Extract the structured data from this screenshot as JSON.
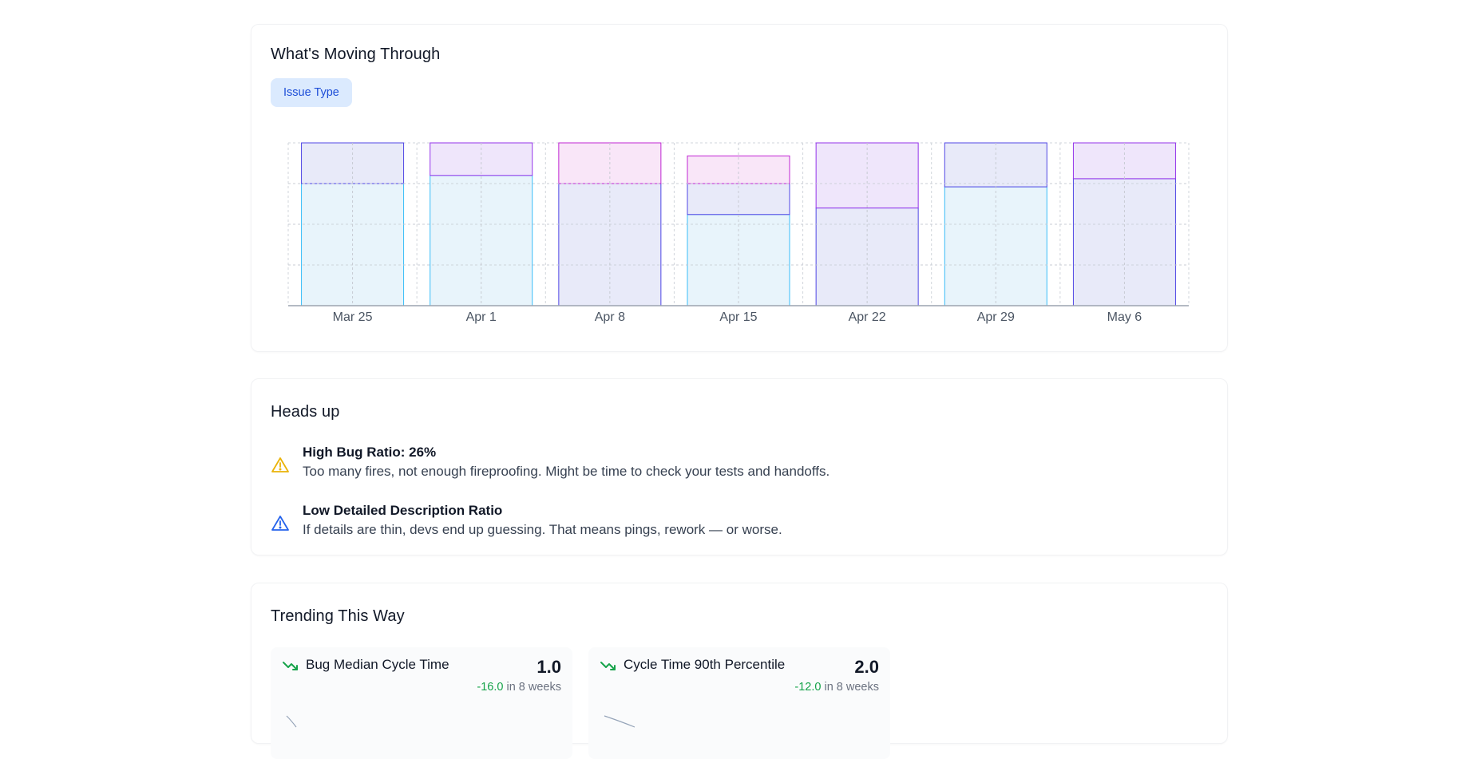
{
  "moving": {
    "title": "What's Moving Through",
    "filter_chip": "Issue Type"
  },
  "chart_data": {
    "type": "bar",
    "stacked": true,
    "normalized": true,
    "categories": [
      "Mar 25",
      "Apr 1",
      "Apr 8",
      "Apr 15",
      "Apr 22",
      "Apr 29",
      "May 6"
    ],
    "series": [
      {
        "key": "cyan",
        "color": "#38bdf8",
        "fill": "#e8f4fb",
        "values": [
          75,
          80,
          0,
          56,
          0,
          73,
          0
        ]
      },
      {
        "key": "blue",
        "color": "#4f46e5",
        "fill": "#e8eaf9",
        "values": [
          25,
          0,
          75,
          19,
          60,
          27,
          78
        ]
      },
      {
        "key": "violet",
        "color": "#9333ea",
        "fill": "#efe6fb",
        "values": [
          0,
          20,
          0,
          0,
          40,
          0,
          22
        ]
      },
      {
        "key": "magenta",
        "color": "#c026d3",
        "fill": "#f9e6f8",
        "values": [
          0,
          0,
          25,
          17,
          0,
          0,
          0
        ]
      }
    ],
    "ylim": [
      0,
      100
    ],
    "grid": true,
    "xlabel": "",
    "ylabel": ""
  },
  "heads_up": {
    "title": "Heads up",
    "alerts": [
      {
        "icon": "warning-triangle-icon",
        "color": "#eab308",
        "title": "High Bug Ratio: 26%",
        "description": "Too many fires, not enough fireproofing. Might be time to check your tests and handoffs."
      },
      {
        "icon": "warning-triangle-icon",
        "color": "#2563eb",
        "title": "Low Detailed Description Ratio",
        "description": "If details are thin, devs end up guessing. That means pings, rework — or worse."
      }
    ]
  },
  "trending": {
    "title": "Trending This Way",
    "cards": [
      {
        "icon": "trending-down-icon",
        "title": "Bug Median Cycle Time",
        "value": "1.0",
        "delta": "-16.0",
        "period": "in 8 weeks"
      },
      {
        "icon": "trending-down-icon",
        "title": "Cycle Time 90th Percentile",
        "value": "2.0",
        "delta": "-12.0",
        "period": "in 8 weeks"
      }
    ]
  },
  "colors": {
    "accent": "#1d4ed8",
    "positive": "#16a34a",
    "warning": "#eab308",
    "info": "#2563eb"
  }
}
